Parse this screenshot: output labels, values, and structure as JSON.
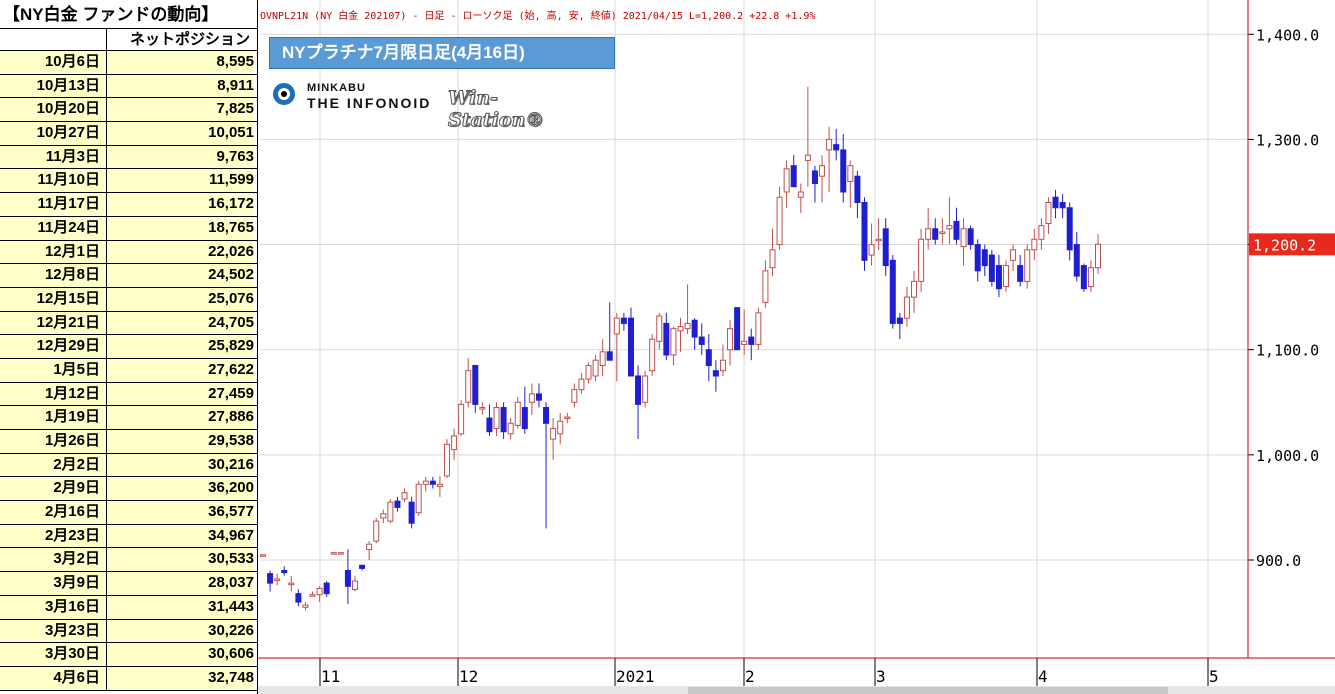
{
  "table": {
    "title": "【NY白金 ファンドの動向】",
    "column_header": "ネットポジション",
    "rows": [
      {
        "date": "10月6日",
        "value": "8,595"
      },
      {
        "date": "10月13日",
        "value": "8,911"
      },
      {
        "date": "10月20日",
        "value": "7,825"
      },
      {
        "date": "10月27日",
        "value": "10,051"
      },
      {
        "date": "11月3日",
        "value": "9,763"
      },
      {
        "date": "11月10日",
        "value": "11,599"
      },
      {
        "date": "11月17日",
        "value": "16,172"
      },
      {
        "date": "11月24日",
        "value": "18,765"
      },
      {
        "date": "12月1日",
        "value": "22,026"
      },
      {
        "date": "12月8日",
        "value": "24,502"
      },
      {
        "date": "12月15日",
        "value": "25,076"
      },
      {
        "date": "12月21日",
        "value": "24,705"
      },
      {
        "date": "12月29日",
        "value": "25,829"
      },
      {
        "date": "1月5日",
        "value": "27,622"
      },
      {
        "date": "1月12日",
        "value": "27,459"
      },
      {
        "date": "1月19日",
        "value": "27,886"
      },
      {
        "date": "1月26日",
        "value": "29,538"
      },
      {
        "date": "2月2日",
        "value": "30,216"
      },
      {
        "date": "2月9日",
        "value": "36,200"
      },
      {
        "date": "2月16日",
        "value": "36,577"
      },
      {
        "date": "2月23日",
        "value": "34,967"
      },
      {
        "date": "3月2日",
        "value": "30,533"
      },
      {
        "date": "3月9日",
        "value": "28,037"
      },
      {
        "date": "3月16日",
        "value": "31,443"
      },
      {
        "date": "3月23日",
        "value": "30,226"
      },
      {
        "date": "3月30日",
        "value": "30,606"
      },
      {
        "date": "4月6日",
        "value": "32,748"
      }
    ]
  },
  "chart_header": "OVNPL21N (NY 白金 202107) - 日足 - ローソク足 (始, 高, 安, 終値)  2021/04/15 L=1,200.2 +22.8  +1.9%",
  "title_box": "NYプラチナ7月限日足(4月16日)",
  "logo": {
    "line1": "MINKABU",
    "line2": "THE INFONOID",
    "line3": "Win-Station®"
  },
  "colors": {
    "up": "#c0504d",
    "down": "#1f1fd0",
    "last_price_bg": "#e8291d",
    "grid": "#d9d9d9",
    "header_text": "#c00000",
    "title_box": "#5b9bd5"
  },
  "chart_data": {
    "type": "candlestick",
    "title": "NYプラチナ7月限日足(4月16日)",
    "y_axis": {
      "ticks": [
        900.0,
        1000.0,
        1100.0,
        1200.0,
        1300.0,
        1400.0
      ],
      "tick_labels": [
        "900.0",
        "1,000.0",
        "1,100.0",
        "1,200.0",
        "1,300.0",
        "1,400.0"
      ],
      "position": "right",
      "grid": true
    },
    "x_axis": {
      "tick_labels": [
        "11",
        "12",
        "2021",
        "2",
        "3",
        "4",
        "5"
      ]
    },
    "last_price": {
      "value": 1200.2,
      "label": "1,200.2"
    },
    "candles": [
      {
        "o": 905,
        "h": 905,
        "l": 905,
        "c": 905
      },
      {
        "o": 887,
        "h": 890,
        "l": 870,
        "c": 878
      },
      {
        "o": 882,
        "h": 887,
        "l": 876,
        "c": 882
      },
      {
        "o": 890,
        "h": 894,
        "l": 885,
        "c": 888
      },
      {
        "o": 878,
        "h": 885,
        "l": 870,
        "c": 878
      },
      {
        "o": 868,
        "h": 872,
        "l": 856,
        "c": 860
      },
      {
        "o": 855,
        "h": 860,
        "l": 852,
        "c": 857
      },
      {
        "o": 867,
        "h": 870,
        "l": 865,
        "c": 867
      },
      {
        "o": 867,
        "h": 875,
        "l": 860,
        "c": 873
      },
      {
        "o": 878,
        "h": 880,
        "l": 865,
        "c": 868
      },
      {
        "o": 907,
        "h": 907,
        "l": 907,
        "c": 907
      },
      {
        "o": 907,
        "h": 907,
        "l": 907,
        "c": 907
      },
      {
        "o": 890,
        "h": 910,
        "l": 858,
        "c": 875
      },
      {
        "o": 872,
        "h": 885,
        "l": 870,
        "c": 880
      },
      {
        "o": 895,
        "h": 895,
        "l": 890,
        "c": 892
      },
      {
        "o": 910,
        "h": 918,
        "l": 900,
        "c": 915
      },
      {
        "o": 918,
        "h": 940,
        "l": 916,
        "c": 937
      },
      {
        "o": 940,
        "h": 948,
        "l": 935,
        "c": 944
      },
      {
        "o": 937,
        "h": 958,
        "l": 935,
        "c": 955
      },
      {
        "o": 956,
        "h": 960,
        "l": 946,
        "c": 950
      },
      {
        "o": 958,
        "h": 968,
        "l": 955,
        "c": 964
      },
      {
        "o": 955,
        "h": 960,
        "l": 930,
        "c": 935
      },
      {
        "o": 945,
        "h": 975,
        "l": 942,
        "c": 972
      },
      {
        "o": 972,
        "h": 979,
        "l": 965,
        "c": 975
      },
      {
        "o": 975,
        "h": 979,
        "l": 968,
        "c": 972
      },
      {
        "o": 970,
        "h": 980,
        "l": 960,
        "c": 972
      },
      {
        "o": 980,
        "h": 1015,
        "l": 978,
        "c": 1010
      },
      {
        "o": 1005,
        "h": 1025,
        "l": 995,
        "c": 1018
      },
      {
        "o": 1020,
        "h": 1052,
        "l": 1018,
        "c": 1048
      },
      {
        "o": 1050,
        "h": 1092,
        "l": 1045,
        "c": 1080
      },
      {
        "o": 1085,
        "h": 1085,
        "l": 1040,
        "c": 1048
      },
      {
        "o": 1045,
        "h": 1050,
        "l": 1038,
        "c": 1045
      },
      {
        "o": 1035,
        "h": 1048,
        "l": 1018,
        "c": 1022
      },
      {
        "o": 1025,
        "h": 1050,
        "l": 1018,
        "c": 1045
      },
      {
        "o": 1045,
        "h": 1050,
        "l": 1015,
        "c": 1022
      },
      {
        "o": 1020,
        "h": 1035,
        "l": 1015,
        "c": 1030
      },
      {
        "o": 1028,
        "h": 1055,
        "l": 1025,
        "c": 1050
      },
      {
        "o": 1045,
        "h": 1065,
        "l": 1020,
        "c": 1025
      },
      {
        "o": 1050,
        "h": 1068,
        "l": 1038,
        "c": 1058
      },
      {
        "o": 1058,
        "h": 1068,
        "l": 1045,
        "c": 1052
      },
      {
        "o": 1045,
        "h": 1050,
        "l": 930,
        "c": 1030
      },
      {
        "o": 1015,
        "h": 1035,
        "l": 995,
        "c": 1025
      },
      {
        "o": 1020,
        "h": 1040,
        "l": 1010,
        "c": 1032
      },
      {
        "o": 1035,
        "h": 1040,
        "l": 1030,
        "c": 1036
      },
      {
        "o": 1050,
        "h": 1068,
        "l": 1045,
        "c": 1062
      },
      {
        "o": 1062,
        "h": 1078,
        "l": 1058,
        "c": 1072
      },
      {
        "o": 1072,
        "h": 1088,
        "l": 1068,
        "c": 1085
      },
      {
        "o": 1075,
        "h": 1095,
        "l": 1070,
        "c": 1090
      },
      {
        "o": 1085,
        "h": 1110,
        "l": 1075,
        "c": 1098
      },
      {
        "o": 1098,
        "h": 1145,
        "l": 1090,
        "c": 1090
      },
      {
        "o": 1115,
        "h": 1135,
        "l": 1070,
        "c": 1130
      },
      {
        "o": 1130,
        "h": 1135,
        "l": 1118,
        "c": 1125
      },
      {
        "o": 1130,
        "h": 1140,
        "l": 1075,
        "c": 1075
      },
      {
        "o": 1075,
        "h": 1085,
        "l": 1015,
        "c": 1048
      },
      {
        "o": 1050,
        "h": 1080,
        "l": 1045,
        "c": 1075
      },
      {
        "o": 1080,
        "h": 1115,
        "l": 1075,
        "c": 1110
      },
      {
        "o": 1108,
        "h": 1135,
        "l": 1100,
        "c": 1132
      },
      {
        "o": 1125,
        "h": 1135,
        "l": 1090,
        "c": 1095
      },
      {
        "o": 1095,
        "h": 1122,
        "l": 1085,
        "c": 1120
      },
      {
        "o": 1118,
        "h": 1130,
        "l": 1098,
        "c": 1122
      },
      {
        "o": 1120,
        "h": 1162,
        "l": 1115,
        "c": 1125
      },
      {
        "o": 1128,
        "h": 1130,
        "l": 1100,
        "c": 1112
      },
      {
        "o": 1112,
        "h": 1125,
        "l": 1095,
        "c": 1105
      },
      {
        "o": 1100,
        "h": 1115,
        "l": 1070,
        "c": 1085
      },
      {
        "o": 1080,
        "h": 1090,
        "l": 1060,
        "c": 1075
      },
      {
        "o": 1080,
        "h": 1105,
        "l": 1075,
        "c": 1090
      },
      {
        "o": 1100,
        "h": 1128,
        "l": 1085,
        "c": 1120
      },
      {
        "o": 1140,
        "h": 1140,
        "l": 1100,
        "c": 1100
      },
      {
        "o": 1105,
        "h": 1138,
        "l": 1095,
        "c": 1108
      },
      {
        "o": 1112,
        "h": 1120,
        "l": 1090,
        "c": 1105
      },
      {
        "o": 1105,
        "h": 1140,
        "l": 1100,
        "c": 1135
      },
      {
        "o": 1145,
        "h": 1185,
        "l": 1140,
        "c": 1175
      },
      {
        "o": 1178,
        "h": 1215,
        "l": 1170,
        "c": 1195
      },
      {
        "o": 1200,
        "h": 1255,
        "l": 1195,
        "c": 1245
      },
      {
        "o": 1250,
        "h": 1280,
        "l": 1235,
        "c": 1272
      },
      {
        "o": 1275,
        "h": 1285,
        "l": 1255,
        "c": 1255
      },
      {
        "o": 1245,
        "h": 1258,
        "l": 1230,
        "c": 1250
      },
      {
        "o": 1280,
        "h": 1350,
        "l": 1255,
        "c": 1285
      },
      {
        "o": 1270,
        "h": 1275,
        "l": 1240,
        "c": 1258
      },
      {
        "o": 1265,
        "h": 1285,
        "l": 1240,
        "c": 1275
      },
      {
        "o": 1290,
        "h": 1312,
        "l": 1250,
        "c": 1300
      },
      {
        "o": 1295,
        "h": 1310,
        "l": 1280,
        "c": 1290
      },
      {
        "o": 1290,
        "h": 1305,
        "l": 1240,
        "c": 1250
      },
      {
        "o": 1260,
        "h": 1280,
        "l": 1235,
        "c": 1275
      },
      {
        "o": 1265,
        "h": 1270,
        "l": 1225,
        "c": 1240
      },
      {
        "o": 1240,
        "h": 1245,
        "l": 1175,
        "c": 1185
      },
      {
        "o": 1190,
        "h": 1220,
        "l": 1180,
        "c": 1200
      },
      {
        "o": 1205,
        "h": 1225,
        "l": 1195,
        "c": 1205
      },
      {
        "o": 1215,
        "h": 1225,
        "l": 1170,
        "c": 1180
      },
      {
        "o": 1185,
        "h": 1190,
        "l": 1120,
        "c": 1125
      },
      {
        "o": 1130,
        "h": 1135,
        "l": 1110,
        "c": 1125
      },
      {
        "o": 1130,
        "h": 1160,
        "l": 1122,
        "c": 1150
      },
      {
        "o": 1150,
        "h": 1175,
        "l": 1135,
        "c": 1165
      },
      {
        "o": 1165,
        "h": 1215,
        "l": 1155,
        "c": 1205
      },
      {
        "o": 1205,
        "h": 1235,
        "l": 1195,
        "c": 1215
      },
      {
        "o": 1215,
        "h": 1225,
        "l": 1200,
        "c": 1205
      },
      {
        "o": 1212,
        "h": 1225,
        "l": 1200,
        "c": 1212
      },
      {
        "o": 1215,
        "h": 1245,
        "l": 1200,
        "c": 1218
      },
      {
        "o": 1222,
        "h": 1235,
        "l": 1200,
        "c": 1205
      },
      {
        "o": 1198,
        "h": 1225,
        "l": 1180,
        "c": 1215
      },
      {
        "o": 1215,
        "h": 1218,
        "l": 1195,
        "c": 1200
      },
      {
        "o": 1200,
        "h": 1205,
        "l": 1165,
        "c": 1175
      },
      {
        "o": 1195,
        "h": 1200,
        "l": 1170,
        "c": 1180
      },
      {
        "o": 1190,
        "h": 1195,
        "l": 1160,
        "c": 1165
      },
      {
        "o": 1180,
        "h": 1190,
        "l": 1150,
        "c": 1158
      },
      {
        "o": 1160,
        "h": 1185,
        "l": 1155,
        "c": 1180
      },
      {
        "o": 1185,
        "h": 1200,
        "l": 1175,
        "c": 1195
      },
      {
        "o": 1180,
        "h": 1190,
        "l": 1160,
        "c": 1165
      },
      {
        "o": 1165,
        "h": 1200,
        "l": 1158,
        "c": 1195
      },
      {
        "o": 1195,
        "h": 1215,
        "l": 1185,
        "c": 1205
      },
      {
        "o": 1205,
        "h": 1225,
        "l": 1195,
        "c": 1218
      },
      {
        "o": 1220,
        "h": 1245,
        "l": 1210,
        "c": 1240
      },
      {
        "o": 1245,
        "h": 1252,
        "l": 1225,
        "c": 1235
      },
      {
        "o": 1240,
        "h": 1248,
        "l": 1225,
        "c": 1235
      },
      {
        "o": 1235,
        "h": 1240,
        "l": 1185,
        "c": 1195
      },
      {
        "o": 1200,
        "h": 1212,
        "l": 1165,
        "c": 1170
      },
      {
        "o": 1180,
        "h": 1182,
        "l": 1155,
        "c": 1158
      },
      {
        "o": 1160,
        "h": 1185,
        "l": 1155,
        "c": 1178
      },
      {
        "o": 1178,
        "h": 1210,
        "l": 1172,
        "c": 1200.2
      }
    ]
  }
}
